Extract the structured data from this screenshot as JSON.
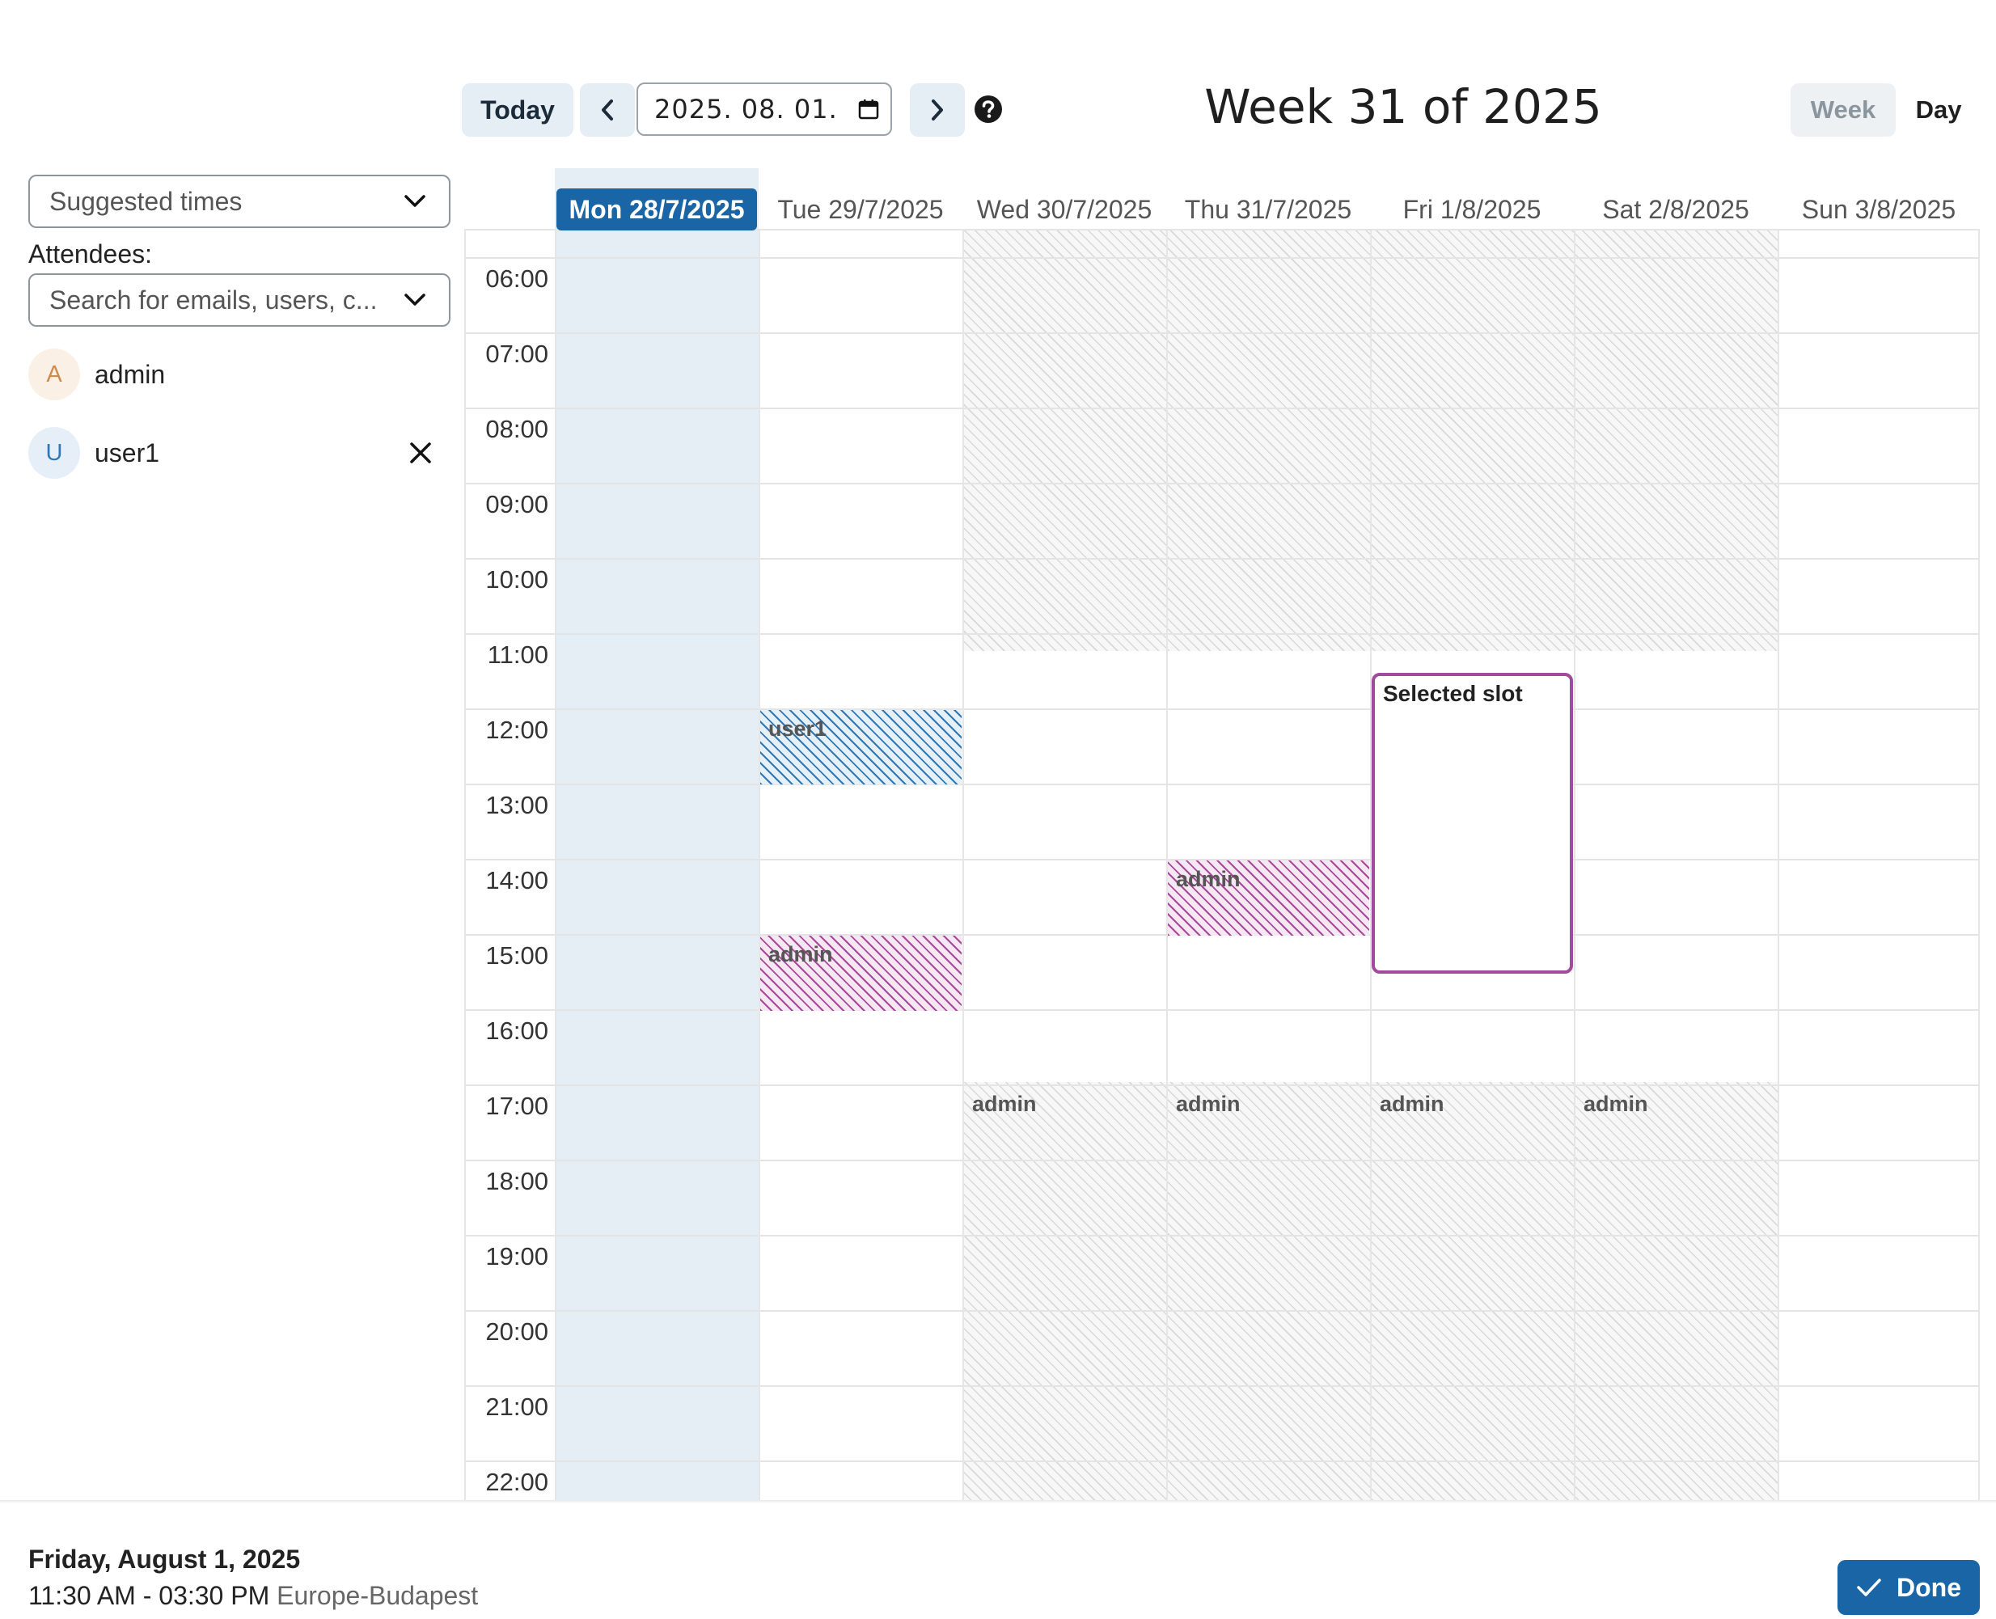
{
  "toolbar": {
    "today_label": "Today",
    "date_value": "2025. 08. 01.",
    "week_title": "Week 31 of 2025",
    "view_week_label": "Week",
    "view_day_label": "Day"
  },
  "sidebar": {
    "suggested_label": "Suggested times",
    "attendees_label": "Attendees:",
    "search_placeholder": "Search for emails, users, c...",
    "attendees": [
      {
        "initial": "A",
        "name": "admin",
        "avatar_bg": "#fbf0e6",
        "avatar_fg": "#d08a4a"
      },
      {
        "initial": "U",
        "name": "user1",
        "avatar_bg": "#e6eef8",
        "avatar_fg": "#2f78b6"
      }
    ]
  },
  "calendar": {
    "days": [
      "Mon 28/7/2025",
      "Tue 29/7/2025",
      "Wed 30/7/2025",
      "Thu 31/7/2025",
      "Fri 1/8/2025",
      "Sat 2/8/2025",
      "Sun 3/8/2025"
    ],
    "today_index": 0,
    "hours": [
      "06:00",
      "07:00",
      "08:00",
      "09:00",
      "10:00",
      "11:00",
      "12:00",
      "13:00",
      "14:00",
      "15:00",
      "16:00",
      "17:00",
      "18:00",
      "19:00",
      "20:00",
      "21:00",
      "22:00"
    ],
    "events": [
      {
        "day": 1,
        "label": "user1",
        "start": "12:00",
        "end": "13:00",
        "color": "blue"
      },
      {
        "day": 1,
        "label": "admin",
        "start": "15:00",
        "end": "16:00",
        "color": "pink"
      },
      {
        "day": 3,
        "label": "admin",
        "start": "14:00",
        "end": "15:00",
        "color": "pink"
      },
      {
        "day": 2,
        "label": "admin",
        "start": "17:00",
        "end": "",
        "color": "gray"
      },
      {
        "day": 3,
        "label": "admin",
        "start": "17:00",
        "end": "",
        "color": "gray"
      },
      {
        "day": 4,
        "label": "admin",
        "start": "17:00",
        "end": "",
        "color": "gray"
      },
      {
        "day": 5,
        "label": "admin",
        "start": "17:00",
        "end": "",
        "color": "gray"
      }
    ],
    "selected_slot": {
      "day": 4,
      "label": "Selected slot",
      "start": "11:30",
      "end": "15:30"
    }
  },
  "footer": {
    "date": "Friday, August 1, 2025",
    "time_range": "11:30 AM - 03:30 PM",
    "timezone": "Europe-Budapest",
    "done_label": "Done"
  },
  "colors": {
    "primary": "#1a65a5",
    "selected_border": "#a24a9b",
    "user1_event": "#2f78b6",
    "admin_event": "#a8489a"
  }
}
